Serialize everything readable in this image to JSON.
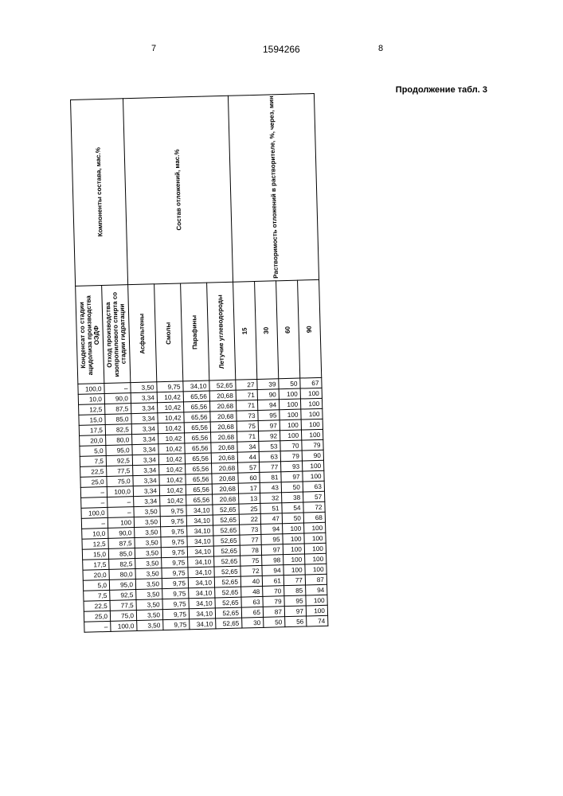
{
  "page": {
    "left_num": "7",
    "patent_num": "1594266",
    "right_num": "8",
    "continuation": "Продолжение табл. 3"
  },
  "table": {
    "header": {
      "group1": "Компоненты состава, мас.%",
      "group2": "Состав отложений, мас.%",
      "group3": "Растворимость отложений в растворителе, %, через, мин",
      "col_kond": "Конденсат со стадии ацидолиза производства ОЭДФ",
      "col_oth": "Отход производства изопропилового спирта со стадии гидратации",
      "col_asf": "Асфальтены",
      "col_smol": "Смолы",
      "col_par": "Парафины",
      "col_let": "Летучие углеводороды",
      "t15": "15",
      "t30": "30",
      "t60": "60",
      "t90": "90"
    },
    "rows": [
      [
        "100,0",
        "–",
        "3,50",
        "9,75",
        "34,10",
        "52,65",
        "27",
        "39",
        "50",
        "67"
      ],
      [
        "10,0",
        "90,0",
        "3,34",
        "10,42",
        "65,56",
        "20,68",
        "71",
        "90",
        "100",
        "100"
      ],
      [
        "12,5",
        "87,5",
        "3,34",
        "10,42",
        "65,56",
        "20,68",
        "71",
        "94",
        "100",
        "100"
      ],
      [
        "15,0",
        "85,0",
        "3,34",
        "10,42",
        "65,56",
        "20,68",
        "73",
        "95",
        "100",
        "100"
      ],
      [
        "17,5",
        "82,5",
        "3,34",
        "10,42",
        "65,56",
        "20,68",
        "75",
        "97",
        "100",
        "100"
      ],
      [
        "20,0",
        "80,0",
        "3,34",
        "10,42",
        "65,56",
        "20,68",
        "71",
        "92",
        "100",
        "100"
      ],
      [
        "5,0",
        "95,0",
        "3,34",
        "10,42",
        "65,56",
        "20,68",
        "34",
        "53",
        "70",
        "79"
      ],
      [
        "7,5",
        "92,5",
        "3,34",
        "10,42",
        "65,56",
        "20,68",
        "44",
        "63",
        "79",
        "90"
      ],
      [
        "22,5",
        "77,5",
        "3,34",
        "10,42",
        "65,56",
        "20,68",
        "57",
        "77",
        "93",
        "100"
      ],
      [
        "25,0",
        "75,0",
        "3,34",
        "10,42",
        "65,56",
        "20,68",
        "60",
        "81",
        "97",
        "100"
      ],
      [
        "–",
        "100,0",
        "3,34",
        "10,42",
        "65,56",
        "20,68",
        "17",
        "43",
        "50",
        "63"
      ],
      [
        "–",
        "–",
        "3,34",
        "10,42",
        "65,56",
        "20,68",
        "13",
        "32",
        "38",
        "57"
      ],
      [
        "100,0",
        "–",
        "3,50",
        "9,75",
        "34,10",
        "52,65",
        "25",
        "51",
        "54",
        "72"
      ],
      [
        "–",
        "100",
        "3,50",
        "9,75",
        "34,10",
        "52,65",
        "22",
        "47",
        "50",
        "68"
      ],
      [
        "10,0",
        "90,0",
        "3,50",
        "9,75",
        "34,10",
        "52,65",
        "73",
        "94",
        "100",
        "100"
      ],
      [
        "12,5",
        "87,5",
        "3,50",
        "9,75",
        "34,10",
        "52,65",
        "77",
        "95",
        "100",
        "100"
      ],
      [
        "15,0",
        "85,0",
        "3,50",
        "9,75",
        "34,10",
        "52,65",
        "78",
        "97",
        "100",
        "100"
      ],
      [
        "17,5",
        "82,5",
        "3,50",
        "9,75",
        "34,10",
        "52,65",
        "75",
        "98",
        "100",
        "100"
      ],
      [
        "20,0",
        "80,0",
        "3,50",
        "9,75",
        "34,10",
        "52,65",
        "72",
        "94",
        "100",
        "100"
      ],
      [
        "5,0",
        "95,0",
        "3,50",
        "9,75",
        "34,10",
        "52,65",
        "40",
        "61",
        "77",
        "87"
      ],
      [
        "7,5",
        "92,5",
        "3,50",
        "9,75",
        "34,10",
        "52,65",
        "48",
        "70",
        "85",
        "94"
      ],
      [
        "22,5",
        "77,5",
        "3,50",
        "9,75",
        "34,10",
        "52,65",
        "63",
        "79",
        "95",
        "100"
      ],
      [
        "25,0",
        "75,0",
        "3,50",
        "9,75",
        "34,10",
        "52,65",
        "65",
        "87",
        "97",
        "100"
      ],
      [
        "–",
        "100,0",
        "3,50",
        "9,75",
        "34,10",
        "52,65",
        "30",
        "50",
        "56",
        "74"
      ]
    ]
  }
}
